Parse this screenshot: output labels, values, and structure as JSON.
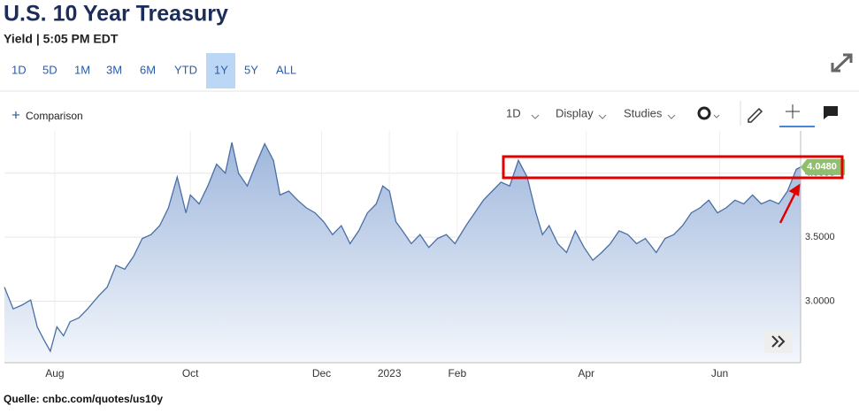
{
  "header": {
    "title": "U.S. 10 Year Treasury",
    "subtitle": "Yield | 5:05 PM EDT"
  },
  "ranges": [
    "1D",
    "5D",
    "1M",
    "3M",
    "6M",
    "YTD",
    "1Y",
    "5Y",
    "ALL"
  ],
  "active_range": "1Y",
  "toolbar": {
    "comparison": "Comparison",
    "interval": "1D",
    "display": "Display",
    "studies": "Studies"
  },
  "source": "Quelle: cnbc.com/quotes/us10y",
  "chart_data": {
    "type": "area",
    "color": "#4a6fa5",
    "x": [
      0,
      4,
      8,
      12,
      15,
      18,
      21,
      24,
      27,
      30,
      34,
      38,
      43,
      47,
      51,
      55,
      59,
      63,
      67,
      71,
      75,
      79,
      83,
      85,
      89,
      93,
      97,
      101,
      104,
      107,
      111,
      115,
      119,
      123,
      126,
      130,
      134,
      138,
      142,
      146,
      150,
      154,
      158,
      162,
      166,
      170,
      173,
      176,
      179,
      182,
      186,
      190,
      194,
      198,
      202,
      206,
      211,
      215,
      219,
      223,
      227,
      231,
      235,
      239,
      243,
      246,
      249,
      253,
      257,
      261,
      265,
      269,
      273,
      277,
      281,
      285,
      289,
      293,
      298,
      302,
      306,
      310,
      314,
      318,
      322,
      326,
      330,
      334,
      338,
      342,
      346,
      350,
      354,
      358,
      362,
      364
    ],
    "values": [
      3.11,
      2.94,
      2.97,
      3.01,
      2.8,
      2.7,
      2.61,
      2.8,
      2.73,
      2.84,
      2.87,
      2.94,
      3.04,
      3.11,
      3.28,
      3.25,
      3.35,
      3.49,
      3.52,
      3.59,
      3.73,
      3.97,
      3.69,
      3.83,
      3.76,
      3.9,
      4.07,
      4.0,
      4.24,
      4.0,
      3.9,
      4.07,
      4.23,
      4.1,
      3.83,
      3.86,
      3.79,
      3.73,
      3.69,
      3.62,
      3.52,
      3.59,
      3.45,
      3.55,
      3.69,
      3.76,
      3.9,
      3.86,
      3.62,
      3.55,
      3.45,
      3.52,
      3.42,
      3.49,
      3.52,
      3.45,
      3.59,
      3.69,
      3.79,
      3.86,
      3.93,
      3.9,
      4.1,
      3.97,
      3.69,
      3.52,
      3.59,
      3.45,
      3.38,
      3.55,
      3.42,
      3.32,
      3.38,
      3.45,
      3.55,
      3.52,
      3.45,
      3.49,
      3.38,
      3.49,
      3.52,
      3.59,
      3.69,
      3.73,
      3.79,
      3.69,
      3.73,
      3.79,
      3.76,
      3.83,
      3.76,
      3.79,
      3.76,
      3.86,
      4.03,
      4.048
    ],
    "xlim": [
      0,
      364
    ],
    "xticks": [
      {
        "value": 23,
        "label": "Aug"
      },
      {
        "value": 85,
        "label": "Oct"
      },
      {
        "value": 145,
        "label": "Dec"
      },
      {
        "value": 176,
        "label": "2023"
      },
      {
        "value": 207,
        "label": "Feb"
      },
      {
        "value": 266,
        "label": "Apr"
      },
      {
        "value": 327,
        "label": "Jun"
      }
    ],
    "ylim": [
      2.52,
      4.33
    ],
    "yticks": [
      {
        "value": 3,
        "label": "3.0000"
      },
      {
        "value": 3.5,
        "label": "3.5000"
      },
      {
        "value": 4,
        "label": "4.0000"
      }
    ],
    "grid": true,
    "last_value": {
      "value": 4.048,
      "label": "4.0480",
      "color": "#8fbf6e"
    }
  }
}
